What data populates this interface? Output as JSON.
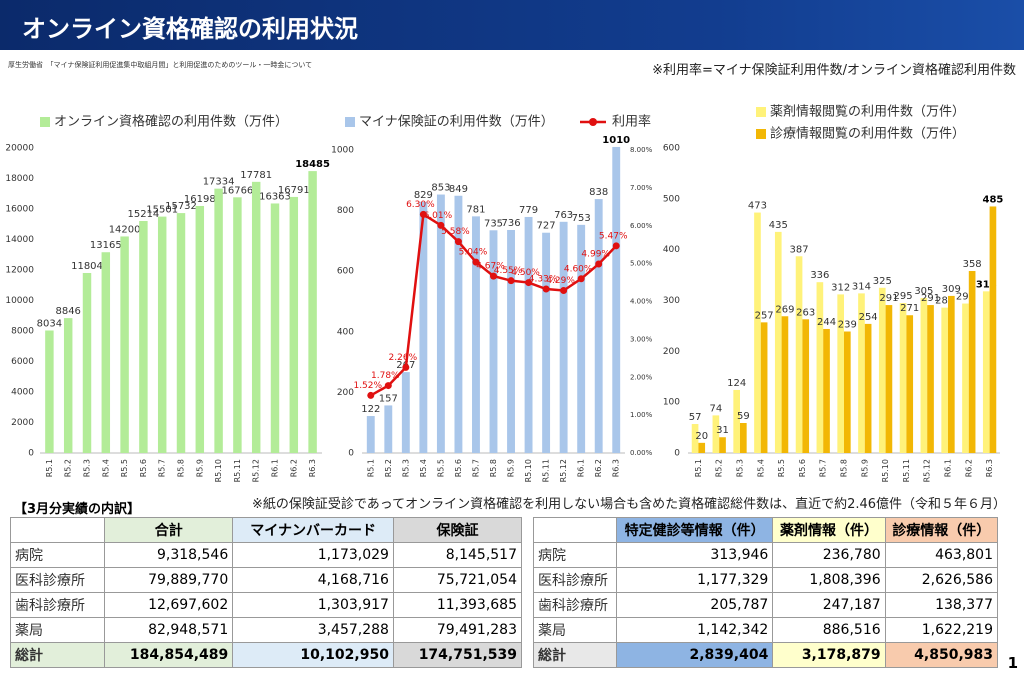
{
  "header": {
    "title": "オンライン資格確認の利用状況",
    "source": "厚生労働省　「マイナ保険証利用促進集中取組月間」と利用促進のためのツール・一時金について",
    "note": "※利用率=マイナ保険証利用件数/オンライン資格確認利用件数"
  },
  "chart_data": [
    {
      "type": "bar",
      "categories": [
        "R5.1",
        "R5.2",
        "R5.3",
        "R5.4",
        "R5.5",
        "R5.6",
        "R5.7",
        "R5.8",
        "R5.9",
        "R5.10",
        "R5.11",
        "R5.12",
        "R6.1",
        "R6.2",
        "R6.3"
      ],
      "series": [
        {
          "name": "オンライン資格確認の利用件数（万件）",
          "color": "#b3ec98",
          "values": [
            8034,
            8846,
            11804,
            13165,
            14200,
            15214,
            15501,
            15732,
            16198,
            17334,
            16766,
            17781,
            16363,
            16791,
            18485
          ]
        }
      ],
      "ylim": [
        0,
        20000
      ],
      "yticks": [
        0,
        2000,
        4000,
        6000,
        8000,
        10000,
        12000,
        14000,
        16000,
        18000,
        20000
      ]
    },
    {
      "type": "combo",
      "categories": [
        "R5.1",
        "R5.2",
        "R5.3",
        "R5.4",
        "R5.5",
        "R5.6",
        "R5.7",
        "R5.8",
        "R5.9",
        "R5.10",
        "R5.11",
        "R5.12",
        "R6.1",
        "R6.2",
        "R6.3"
      ],
      "series": [
        {
          "name": "マイナ保険証の利用件数（万件）",
          "color": "#a9c6ea",
          "values": [
            122,
            157,
            267,
            829,
            853,
            849,
            781,
            735,
            736,
            779,
            727,
            763,
            753,
            838,
            1010
          ]
        },
        {
          "name": "利用率",
          "color": "#e01010",
          "type": "line",
          "axis": "y2",
          "values": [
            1.52,
            1.78,
            2.26,
            6.3,
            6.01,
            5.58,
            5.04,
            4.67,
            4.55,
            4.5,
            4.33,
            4.29,
            4.6,
            4.99,
            5.47
          ],
          "value_labels": [
            "1.52%",
            "1.78%",
            "2.26%",
            "6.30%",
            "6.01%",
            "5.58%",
            "5.04%",
            "4.67%",
            "4.55%",
            "4.50%",
            "4.33%",
            "4.29%",
            "4.60%",
            "4.99%",
            "5.47%"
          ]
        }
      ],
      "ylim": [
        0,
        1000
      ],
      "yticks": [
        0,
        200,
        400,
        600,
        800,
        1000
      ],
      "y2lim": [
        0,
        8
      ],
      "y2ticks": [
        {
          "value": 0,
          "label": "0.00%"
        },
        {
          "value": 1,
          "label": "1.00%"
        },
        {
          "value": 2,
          "label": "2.00%"
        },
        {
          "value": 3,
          "label": "3.00%"
        },
        {
          "value": 4,
          "label": "4.00%"
        },
        {
          "value": 5,
          "label": "5.00%"
        },
        {
          "value": 6,
          "label": "6.00%"
        },
        {
          "value": 7,
          "label": "7.00%"
        },
        {
          "value": 8,
          "label": "8.00%"
        }
      ]
    },
    {
      "type": "bar",
      "categories": [
        "R5.1",
        "R5.2",
        "R5.3",
        "R5.4",
        "R5.5",
        "R5.6",
        "R5.7",
        "R5.8",
        "R5.9",
        "R5.10",
        "R5.11",
        "R5.12",
        "R6.1",
        "R6.2",
        "R6.3"
      ],
      "series": [
        {
          "name": "薬剤情報閲覧の利用件数（万件）",
          "color": "#fff27a",
          "values": [
            57,
            74,
            124,
            473,
            435,
            387,
            336,
            312,
            314,
            325,
            295,
            305,
            286,
            294,
            318
          ]
        },
        {
          "name": "診療情報閲覧の利用件数（万件）",
          "color": "#f2b705",
          "values": [
            20,
            31,
            59,
            257,
            269,
            263,
            244,
            239,
            254,
            291,
            271,
            291,
            309,
            358,
            485
          ]
        }
      ],
      "ylim": [
        0,
        600
      ],
      "yticks": [
        0,
        100,
        200,
        300,
        400,
        500,
        600
      ]
    }
  ],
  "section": "【3月分実績の内訳】",
  "note2": "※紙の保険証受診であってオンライン資格確認を利用しない場合も含めた資格確認総件数は、直近で約2.46億件（令和５年６月）",
  "table_left": {
    "columns": [
      "合計",
      "マイナンバーカード",
      "保険証"
    ],
    "rows": [
      {
        "label": "病院",
        "cells": [
          "9,318,546",
          "1,173,029",
          "8,145,517"
        ]
      },
      {
        "label": "医科診療所",
        "cells": [
          "79,889,770",
          "4,168,716",
          "75,721,054"
        ]
      },
      {
        "label": "歯科診療所",
        "cells": [
          "12,697,602",
          "1,303,917",
          "11,393,685"
        ]
      },
      {
        "label": "薬局",
        "cells": [
          "82,948,571",
          "3,457,288",
          "79,491,283"
        ]
      },
      {
        "label": "総計",
        "cells": [
          "184,854,489",
          "10,102,950",
          "174,751,539"
        ]
      }
    ]
  },
  "table_right": {
    "columns": [
      "特定健診等情報（件）",
      "薬剤情報（件）",
      "診療情報（件）"
    ],
    "rows": [
      {
        "label": "病院",
        "cells": [
          "313,946",
          "236,780",
          "463,801"
        ]
      },
      {
        "label": "医科診療所",
        "cells": [
          "1,177,329",
          "1,808,396",
          "2,626,586"
        ]
      },
      {
        "label": "歯科診療所",
        "cells": [
          "205,787",
          "247,187",
          "138,377"
        ]
      },
      {
        "label": "薬局",
        "cells": [
          "1,142,342",
          "886,516",
          "1,622,219"
        ]
      },
      {
        "label": "総計",
        "cells": [
          "2,839,404",
          "3,178,879",
          "4,850,983"
        ]
      }
    ]
  },
  "page_number": "1"
}
